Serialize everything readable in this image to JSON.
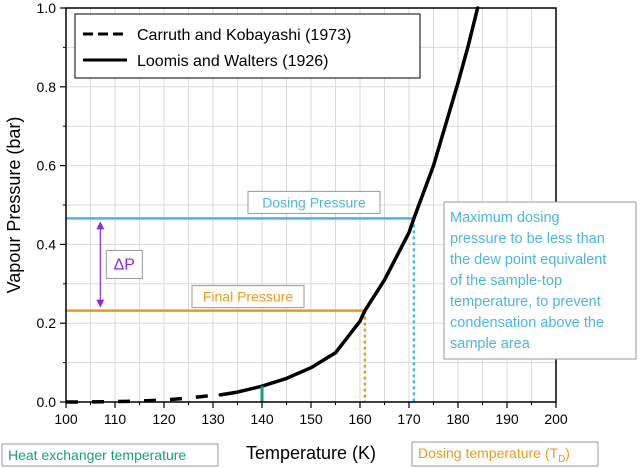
{
  "chart_data": {
    "type": "line",
    "xlabel": "Temperature (K)",
    "ylabel": "Vapour Pressure (bar)",
    "xlim": [
      100,
      200
    ],
    "ylim": [
      0,
      1.0
    ],
    "x_ticks": [
      100,
      110,
      120,
      130,
      140,
      150,
      160,
      170,
      180,
      190,
      200
    ],
    "y_ticks": [
      0.0,
      0.2,
      0.4,
      0.6,
      0.8,
      1.0
    ],
    "x_tick_labels": [
      "100",
      "110",
      "120",
      "130",
      "140",
      "150",
      "160",
      "170",
      "180",
      "190",
      "200"
    ],
    "y_tick_labels": [
      "0.0",
      "0.2",
      "0.4",
      "0.6",
      "0.8",
      "1.0"
    ],
    "grid": true,
    "legend_position": "top-left",
    "series": [
      {
        "name": "Carruth and Kobayashi (1973)",
        "style": "dashed",
        "color": "#000000",
        "x": [
          100,
          105,
          110,
          115,
          120,
          125,
          130
        ],
        "y": [
          0.0001,
          0.0003,
          0.0009,
          0.0023,
          0.0051,
          0.01,
          0.017
        ]
      },
      {
        "name": "Loomis and Walters (1926)",
        "style": "solid",
        "color": "#000000",
        "x": [
          131.5,
          135,
          140,
          145,
          150,
          155,
          160,
          161,
          165,
          170,
          171,
          175,
          180,
          182,
          184
        ],
        "y": [
          0.018,
          0.025,
          0.04,
          0.06,
          0.087,
          0.125,
          0.205,
          0.232,
          0.31,
          0.43,
          0.466,
          0.6,
          0.81,
          0.9,
          1.0
        ]
      }
    ],
    "annotations": {
      "dosing_pressure": {
        "label": "Dosing Pressure",
        "y": 0.466,
        "x_end": 171,
        "color": "#4fb3df"
      },
      "final_pressure": {
        "label": "Final Pressure",
        "y": 0.232,
        "x_end": 161,
        "color": "#e69b1e"
      },
      "delta_p": {
        "label": "ΔP",
        "y_top": 0.466,
        "y_bottom": 0.232,
        "x": 107,
        "color": "#8a2be2"
      },
      "dosing_temp_line": {
        "x": 161,
        "y_top": 0.232,
        "color": "#e69b1e"
      },
      "dew_point_line": {
        "x": 171,
        "y_top": 0.466,
        "color": "#4fb3df"
      },
      "heat_exchanger_mark": {
        "x": 140,
        "y_top": 0.04,
        "color": "#1a9e77"
      }
    },
    "callouts": {
      "heat_exchanger": {
        "text": "Heat exchanger temperature",
        "color": "#1a9e77"
      },
      "dosing_temperature": {
        "text": "Dosing temperature (T",
        "subscript": "D",
        "suffix": ")",
        "color": "#e69b1e"
      },
      "dew_point": {
        "lines": [
          "Maximum dosing",
          "pressure to be less than",
          "the dew point equivalent",
          "of the sample-top",
          "temperature, to prevent",
          "condensation above the",
          "sample area"
        ],
        "color": "#4fb3df"
      }
    }
  }
}
